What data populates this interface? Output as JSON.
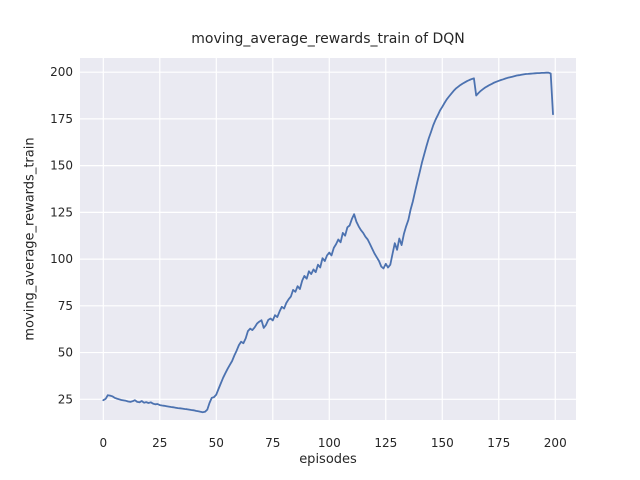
{
  "figure": {
    "title": "moving_average_rewards_train of DQN",
    "xlabel": "episodes",
    "ylabel": "moving_average_rewards_train"
  },
  "axes": {
    "x_tick_labels": [
      "0",
      "25",
      "50",
      "75",
      "100",
      "125",
      "150",
      "175",
      "200"
    ],
    "y_tick_labels": [
      "25",
      "50",
      "75",
      "100",
      "125",
      "150",
      "175",
      "200"
    ]
  },
  "colors": {
    "line": "#4C72B0",
    "panel_background": "#EAEAF2",
    "gridline": "#FFFFFF",
    "text": "#262626",
    "figure_background": "#FFFFFF"
  },
  "chart_data": {
    "type": "line",
    "title": "moving_average_rewards_train of DQN",
    "xlabel": "episodes",
    "ylabel": "moving_average_rewards_train",
    "x_ticks": [
      0,
      25,
      50,
      75,
      100,
      125,
      150,
      175,
      200
    ],
    "y_ticks": [
      25,
      50,
      75,
      100,
      125,
      150,
      175,
      200
    ],
    "grid": true,
    "legend_visible": false,
    "x_start": 0,
    "x_step": 1,
    "series": [
      {
        "name": "moving_average_rewards_train",
        "values": [
          24.5,
          25.2,
          27.2,
          27.0,
          26.6,
          25.8,
          25.4,
          25.0,
          24.6,
          24.4,
          24.2,
          23.8,
          23.6,
          24.0,
          24.5,
          23.6,
          23.4,
          24.1,
          23.2,
          23.5,
          23.0,
          23.4,
          22.7,
          22.3,
          22.5,
          21.9,
          21.7,
          21.5,
          21.3,
          21.1,
          20.9,
          20.7,
          20.5,
          20.3,
          20.2,
          20.0,
          19.8,
          19.7,
          19.5,
          19.3,
          19.1,
          18.8,
          18.6,
          18.3,
          18.1,
          18.3,
          19.5,
          23.0,
          25.8,
          26.2,
          27.5,
          30.5,
          33.5,
          36.5,
          38.9,
          41.3,
          43.4,
          45.5,
          48.5,
          51.0,
          54.0,
          55.8,
          55.0,
          57.6,
          61.5,
          62.8,
          62.0,
          63.5,
          65.5,
          66.5,
          67.3,
          63.2,
          64.8,
          67.5,
          68.2,
          67.2,
          70.0,
          69.0,
          72.0,
          74.5,
          73.5,
          76.5,
          78.5,
          80.0,
          83.5,
          82.5,
          85.5,
          84.0,
          88.5,
          91.0,
          89.5,
          93.5,
          92.0,
          94.5,
          93.0,
          97.0,
          95.5,
          100.5,
          99.0,
          102.0,
          103.5,
          102.0,
          106.0,
          108.0,
          110.5,
          109.0,
          114.0,
          112.5,
          117.0,
          118.0,
          121.5,
          124.0,
          120.0,
          117.5,
          115.5,
          114.0,
          112.0,
          110.5,
          108.0,
          105.5,
          103.0,
          101.0,
          99.0,
          96.0,
          95.0,
          97.5,
          95.5,
          97.0,
          103.0,
          108.5,
          105.0,
          111.0,
          107.5,
          113.5,
          117.5,
          121.0,
          126.5,
          131.0,
          136.5,
          141.5,
          146.5,
          151.5,
          156.0,
          160.5,
          164.5,
          168.0,
          171.5,
          174.5,
          177.0,
          179.5,
          181.5,
          183.5,
          185.5,
          187.0,
          188.5,
          190.0,
          191.2,
          192.2,
          193.1,
          193.9,
          194.6,
          195.2,
          195.8,
          196.3,
          196.7,
          187.5,
          188.8,
          190.0,
          190.9,
          191.8,
          192.5,
          193.2,
          193.8,
          194.4,
          194.9,
          195.4,
          195.8,
          196.2,
          196.6,
          197.0,
          197.3,
          197.6,
          197.9,
          198.2,
          198.4,
          198.6,
          198.8,
          199.0,
          199.1,
          199.2,
          199.3,
          199.4,
          199.5,
          199.5,
          199.6,
          199.6,
          199.7,
          199.7,
          199.3,
          177.5
        ]
      }
    ]
  }
}
